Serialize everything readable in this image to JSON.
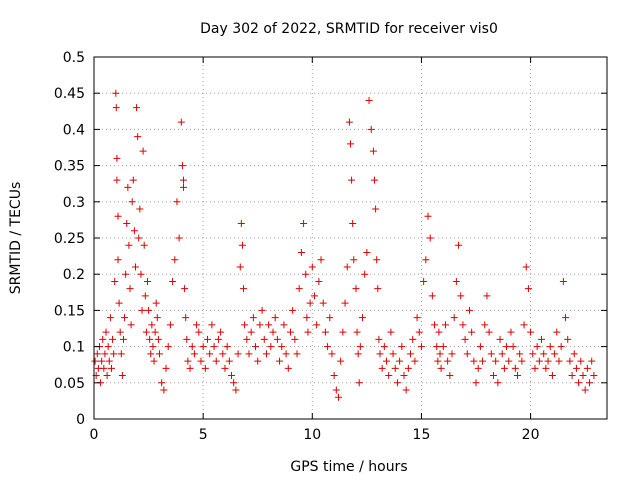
{
  "chart_data": {
    "type": "scatter",
    "title": "Day 302 of 2022, SRMTID for receiver vis0",
    "xlabel": "GPS time / hours",
    "ylabel": "SRMTID / TECUs",
    "xlim": [
      0,
      23.5
    ],
    "ylim": [
      0,
      0.5
    ],
    "x_ticks": [
      "0",
      "5",
      "10",
      "15",
      "20"
    ],
    "y_ticks": [
      "0",
      "0.05",
      "0.1",
      "0.15",
      "0.2",
      "0.25",
      "0.3",
      "0.35",
      "0.4",
      "0.45",
      "0.5"
    ],
    "grid": true,
    "marker": "plus",
    "color": "#e00000",
    "series": [
      {
        "name": "vis0",
        "x": [
          0.05,
          0.1,
          0.15,
          0.2,
          0.25,
          0.3,
          0.35,
          0.4,
          0.45,
          0.5,
          0.55,
          0.6,
          0.65,
          0.7,
          0.75,
          0.8,
          0.85,
          0.9,
          0.95,
          1.0,
          1.02,
          1.05,
          1.05,
          1.1,
          1.1,
          1.15,
          1.2,
          1.25,
          1.3,
          1.35,
          1.4,
          1.45,
          1.5,
          1.55,
          1.6,
          1.65,
          1.7,
          1.75,
          1.8,
          1.85,
          1.9,
          1.95,
          2.0,
          2.05,
          2.1,
          2.15,
          2.2,
          2.25,
          2.3,
          2.35,
          2.4,
          2.45,
          2.5,
          2.55,
          2.6,
          2.65,
          2.7,
          2.75,
          2.8,
          2.85,
          2.9,
          2.95,
          3.0,
          3.1,
          3.2,
          3.3,
          3.4,
          3.5,
          3.6,
          3.7,
          3.8,
          3.9,
          4.0,
          4.05,
          4.1,
          4.1,
          4.15,
          4.2,
          4.25,
          4.3,
          4.4,
          4.5,
          4.6,
          4.7,
          4.8,
          4.9,
          5.0,
          5.1,
          5.2,
          5.3,
          5.4,
          5.5,
          5.6,
          5.7,
          5.8,
          5.9,
          6.0,
          6.1,
          6.2,
          6.3,
          6.4,
          6.5,
          6.6,
          6.7,
          6.75,
          6.8,
          6.85,
          6.9,
          7.0,
          7.1,
          7.2,
          7.3,
          7.4,
          7.5,
          7.6,
          7.7,
          7.8,
          7.9,
          8.0,
          8.1,
          8.2,
          8.3,
          8.4,
          8.5,
          8.6,
          8.7,
          8.8,
          8.9,
          9.0,
          9.1,
          9.2,
          9.3,
          9.4,
          9.5,
          9.6,
          9.7,
          9.75,
          9.8,
          9.9,
          10.0,
          10.1,
          10.2,
          10.3,
          10.4,
          10.5,
          10.6,
          10.7,
          10.8,
          10.9,
          11.0,
          11.1,
          11.2,
          11.3,
          11.4,
          11.5,
          11.6,
          11.7,
          11.75,
          11.8,
          11.85,
          11.9,
          12.0,
          12.05,
          12.1,
          12.15,
          12.2,
          12.3,
          12.4,
          12.5,
          12.6,
          12.7,
          12.8,
          12.85,
          12.9,
          12.95,
          13.0,
          13.05,
          13.1,
          13.2,
          13.3,
          13.4,
          13.5,
          13.6,
          13.7,
          13.8,
          13.9,
          14.0,
          14.1,
          14.2,
          14.3,
          14.4,
          14.5,
          14.6,
          14.7,
          14.8,
          14.9,
          15.0,
          15.1,
          15.2,
          15.3,
          15.4,
          15.5,
          15.6,
          15.7,
          15.75,
          15.8,
          15.85,
          15.9,
          16.0,
          16.1,
          16.2,
          16.3,
          16.4,
          16.5,
          16.6,
          16.7,
          16.8,
          16.9,
          17.0,
          17.1,
          17.2,
          17.3,
          17.4,
          17.5,
          17.6,
          17.7,
          17.8,
          17.9,
          18.0,
          18.1,
          18.2,
          18.3,
          18.4,
          18.5,
          18.6,
          18.7,
          18.8,
          18.9,
          19.0,
          19.1,
          19.2,
          19.3,
          19.4,
          19.5,
          19.6,
          19.7,
          19.8,
          19.9,
          20.0,
          20.1,
          20.2,
          20.3,
          20.4,
          20.5,
          20.6,
          20.7,
          20.8,
          20.9,
          21.0,
          21.1,
          21.2,
          21.3,
          21.4,
          21.5,
          21.6,
          21.7,
          21.8,
          21.9,
          22.0,
          22.1,
          22.2,
          22.3,
          22.4,
          22.5,
          22.6,
          22.7,
          22.8,
          22.9
        ],
        "y": [
          0.08,
          0.06,
          0.09,
          0.07,
          0.1,
          0.05,
          0.08,
          0.11,
          0.07,
          0.09,
          0.12,
          0.06,
          0.1,
          0.08,
          0.14,
          0.07,
          0.11,
          0.09,
          0.19,
          0.45,
          0.43,
          0.36,
          0.33,
          0.28,
          0.22,
          0.16,
          0.12,
          0.09,
          0.06,
          0.11,
          0.14,
          0.2,
          0.27,
          0.32,
          0.24,
          0.18,
          0.13,
          0.3,
          0.33,
          0.26,
          0.21,
          0.43,
          0.39,
          0.25,
          0.29,
          0.2,
          0.15,
          0.37,
          0.24,
          0.17,
          0.12,
          0.19,
          0.15,
          0.11,
          0.09,
          0.13,
          0.1,
          0.08,
          0.12,
          0.16,
          0.14,
          0.11,
          0.09,
          0.05,
          0.04,
          0.07,
          0.1,
          0.13,
          0.19,
          0.22,
          0.3,
          0.25,
          0.41,
          0.35,
          0.33,
          0.32,
          0.18,
          0.14,
          0.11,
          0.08,
          0.07,
          0.1,
          0.09,
          0.13,
          0.12,
          0.08,
          0.1,
          0.07,
          0.11,
          0.09,
          0.13,
          0.1,
          0.08,
          0.11,
          0.12,
          0.09,
          0.07,
          0.1,
          0.08,
          0.06,
          0.05,
          0.04,
          0.09,
          0.21,
          0.27,
          0.24,
          0.18,
          0.13,
          0.11,
          0.09,
          0.12,
          0.14,
          0.1,
          0.08,
          0.13,
          0.15,
          0.11,
          0.09,
          0.13,
          0.1,
          0.12,
          0.14,
          0.11,
          0.08,
          0.1,
          0.13,
          0.09,
          0.07,
          0.12,
          0.15,
          0.11,
          0.09,
          0.18,
          0.23,
          0.27,
          0.2,
          0.14,
          0.12,
          0.16,
          0.21,
          0.17,
          0.13,
          0.19,
          0.22,
          0.16,
          0.12,
          0.1,
          0.14,
          0.09,
          0.06,
          0.04,
          0.03,
          0.08,
          0.12,
          0.16,
          0.21,
          0.41,
          0.38,
          0.33,
          0.27,
          0.22,
          0.18,
          0.12,
          0.09,
          0.05,
          0.1,
          0.14,
          0.2,
          0.23,
          0.44,
          0.4,
          0.37,
          0.33,
          0.29,
          0.22,
          0.18,
          0.11,
          0.09,
          0.07,
          0.1,
          0.08,
          0.06,
          0.12,
          0.09,
          0.07,
          0.05,
          0.08,
          0.1,
          0.06,
          0.04,
          0.07,
          0.09,
          0.11,
          0.08,
          0.14,
          0.12,
          0.1,
          0.19,
          0.22,
          0.28,
          0.25,
          0.17,
          0.13,
          0.1,
          0.08,
          0.12,
          0.09,
          0.07,
          0.1,
          0.13,
          0.08,
          0.06,
          0.09,
          0.14,
          0.19,
          0.24,
          0.17,
          0.13,
          0.11,
          0.09,
          0.15,
          0.12,
          0.08,
          0.05,
          0.07,
          0.1,
          0.08,
          0.13,
          0.17,
          0.12,
          0.09,
          0.06,
          0.08,
          0.05,
          0.11,
          0.09,
          0.07,
          0.1,
          0.08,
          0.12,
          0.1,
          0.07,
          0.06,
          0.09,
          0.08,
          0.13,
          0.21,
          0.18,
          0.12,
          0.09,
          0.07,
          0.1,
          0.08,
          0.11,
          0.09,
          0.07,
          0.08,
          0.1,
          0.06,
          0.09,
          0.12,
          0.08,
          0.1,
          0.19,
          0.14,
          0.11,
          0.08,
          0.06,
          0.09,
          0.07,
          0.05,
          0.08,
          0.06,
          0.04,
          0.07,
          0.05,
          0.08,
          0.06
        ]
      }
    ]
  }
}
